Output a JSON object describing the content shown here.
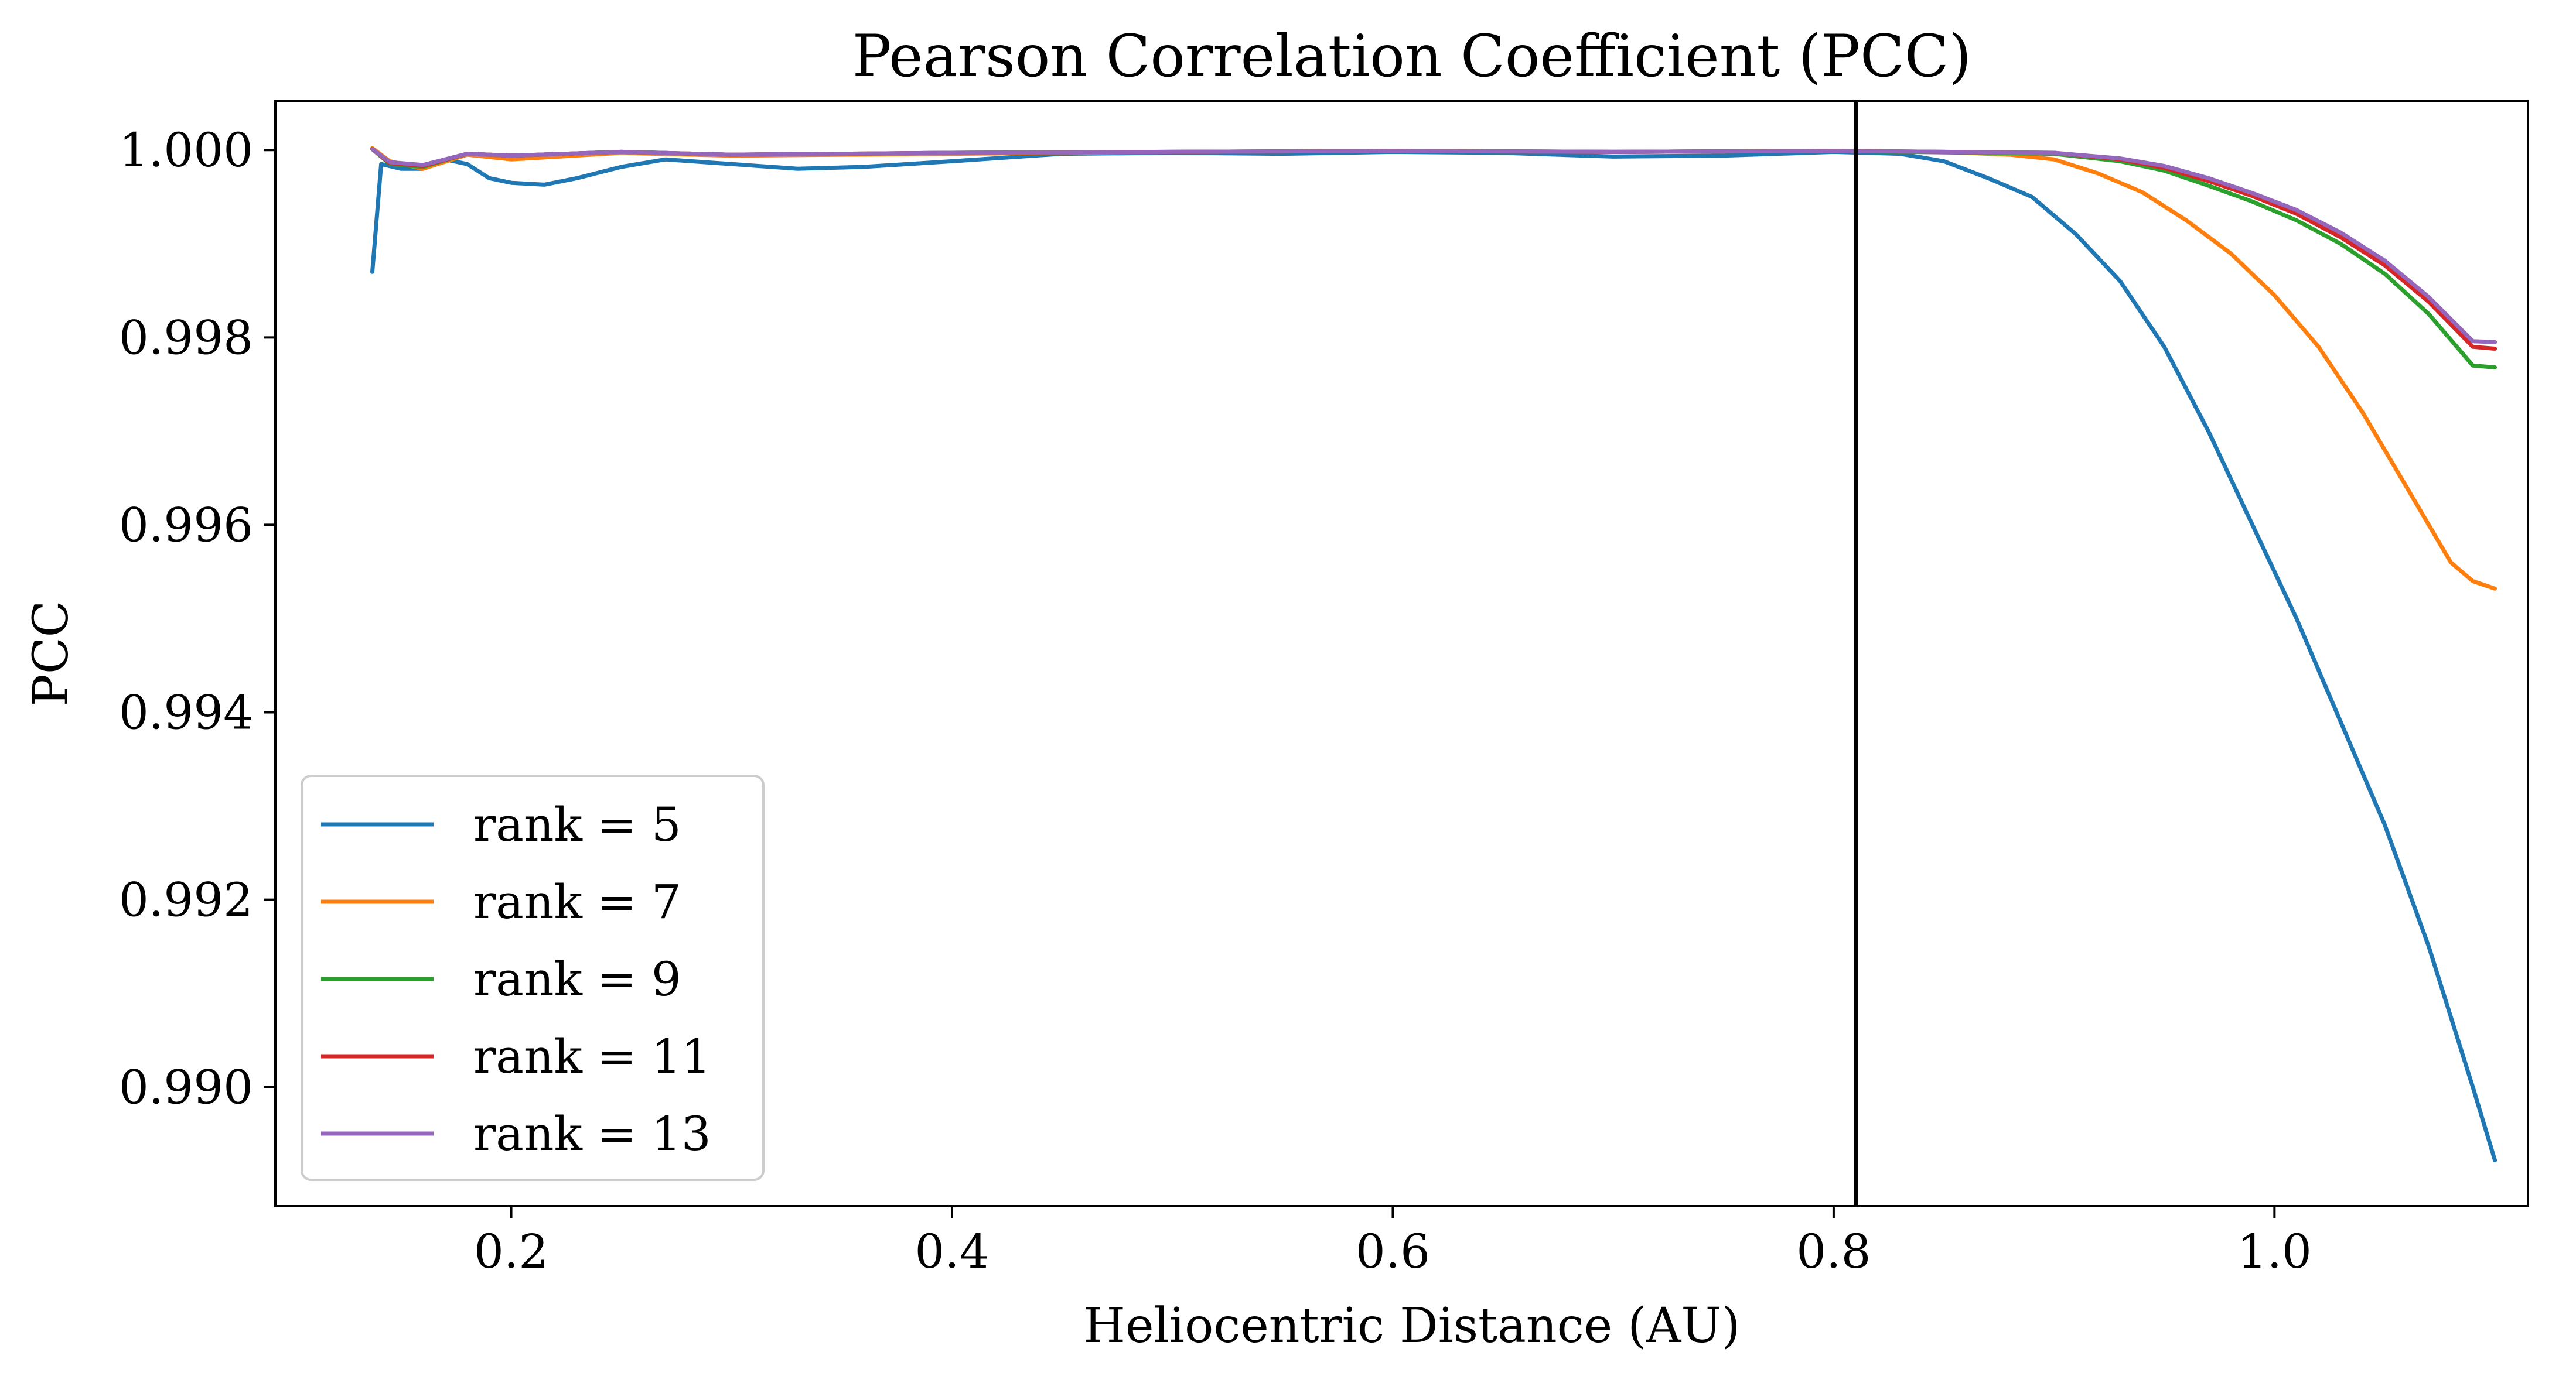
{
  "chart_data": {
    "type": "line",
    "title": "Pearson Correlation Coefficient (PCC)",
    "xlabel": "Heliocentric Distance (AU)",
    "ylabel": "PCC",
    "xlim": [
      0.093,
      1.115
    ],
    "ylim": [
      0.98873,
      1.00052
    ],
    "xticks": [
      0.2,
      0.4,
      0.6,
      0.8,
      1.0
    ],
    "xtick_labels": [
      "0.2",
      "0.4",
      "0.6",
      "0.8",
      "1.0"
    ],
    "yticks": [
      0.99,
      0.992,
      0.994,
      0.996,
      0.998,
      1.0
    ],
    "ytick_labels": [
      "0.990",
      "0.992",
      "0.994",
      "0.996",
      "0.998",
      "1.000"
    ],
    "vline": {
      "x": 0.81,
      "color": "#000000"
    },
    "grid": false,
    "legend_position": "lower-left",
    "series": [
      {
        "name": "rank = 5",
        "color": "#1f77b4",
        "points": [
          [
            0.137,
            0.9987
          ],
          [
            0.141,
            0.99985
          ],
          [
            0.15,
            0.9998
          ],
          [
            0.16,
            0.9998
          ],
          [
            0.17,
            0.9999
          ],
          [
            0.18,
            0.99985
          ],
          [
            0.19,
            0.9997
          ],
          [
            0.2,
            0.99965
          ],
          [
            0.215,
            0.99963
          ],
          [
            0.23,
            0.9997
          ],
          [
            0.25,
            0.99982
          ],
          [
            0.27,
            0.9999
          ],
          [
            0.3,
            0.99985
          ],
          [
            0.33,
            0.9998
          ],
          [
            0.36,
            0.99982
          ],
          [
            0.4,
            0.99988
          ],
          [
            0.45,
            0.99996
          ],
          [
            0.5,
            0.99997
          ],
          [
            0.55,
            0.99996
          ],
          [
            0.6,
            0.99998
          ],
          [
            0.65,
            0.99997
          ],
          [
            0.7,
            0.99993
          ],
          [
            0.75,
            0.99994
          ],
          [
            0.8,
            0.99998
          ],
          [
            0.83,
            0.99996
          ],
          [
            0.85,
            0.99988
          ],
          [
            0.87,
            0.9997
          ],
          [
            0.89,
            0.9995
          ],
          [
            0.91,
            0.9991
          ],
          [
            0.93,
            0.9986
          ],
          [
            0.95,
            0.9979
          ],
          [
            0.97,
            0.997
          ],
          [
            0.99,
            0.996
          ],
          [
            1.01,
            0.995
          ],
          [
            1.03,
            0.9939
          ],
          [
            1.05,
            0.9928
          ],
          [
            1.07,
            0.9915
          ],
          [
            1.09,
            0.99
          ],
          [
            1.1,
            0.98922
          ]
        ]
      },
      {
        "name": "rank = 7",
        "color": "#ff7f0e",
        "points": [
          [
            0.137,
            1.00002
          ],
          [
            0.145,
            0.99988
          ],
          [
            0.16,
            0.9998
          ],
          [
            0.18,
            0.99995
          ],
          [
            0.2,
            0.9999
          ],
          [
            0.25,
            0.99997
          ],
          [
            0.3,
            0.99994
          ],
          [
            0.4,
            0.99996
          ],
          [
            0.5,
            0.99998
          ],
          [
            0.6,
            0.99999
          ],
          [
            0.7,
            0.99998
          ],
          [
            0.8,
            0.99999
          ],
          [
            0.85,
            0.99998
          ],
          [
            0.88,
            0.99995
          ],
          [
            0.9,
            0.9999
          ],
          [
            0.92,
            0.99975
          ],
          [
            0.94,
            0.99955
          ],
          [
            0.96,
            0.99925
          ],
          [
            0.98,
            0.9989
          ],
          [
            1.0,
            0.99845
          ],
          [
            1.02,
            0.9979
          ],
          [
            1.04,
            0.9972
          ],
          [
            1.06,
            0.9964
          ],
          [
            1.08,
            0.9956
          ],
          [
            1.09,
            0.9954
          ],
          [
            1.1,
            0.99532
          ]
        ]
      },
      {
        "name": "rank = 9",
        "color": "#2ca02c",
        "points": [
          [
            0.137,
            1.00001
          ],
          [
            0.145,
            0.99985
          ],
          [
            0.16,
            0.99982
          ],
          [
            0.18,
            0.99996
          ],
          [
            0.2,
            0.99994
          ],
          [
            0.25,
            0.99998
          ],
          [
            0.3,
            0.99995
          ],
          [
            0.4,
            0.99997
          ],
          [
            0.5,
            0.99998
          ],
          [
            0.6,
            0.99999
          ],
          [
            0.7,
            0.99998
          ],
          [
            0.8,
            0.99999
          ],
          [
            0.9,
            0.99996
          ],
          [
            0.93,
            0.99988
          ],
          [
            0.95,
            0.99978
          ],
          [
            0.97,
            0.99962
          ],
          [
            0.99,
            0.99945
          ],
          [
            1.01,
            0.99925
          ],
          [
            1.03,
            0.999
          ],
          [
            1.05,
            0.99868
          ],
          [
            1.07,
            0.99825
          ],
          [
            1.09,
            0.9977
          ],
          [
            1.1,
            0.99768
          ]
        ]
      },
      {
        "name": "rank = 11",
        "color": "#d62728",
        "points": [
          [
            0.137,
            1.00001
          ],
          [
            0.145,
            0.99986
          ],
          [
            0.16,
            0.99983
          ],
          [
            0.18,
            0.99996
          ],
          [
            0.2,
            0.99994
          ],
          [
            0.25,
            0.99998
          ],
          [
            0.3,
            0.99995
          ],
          [
            0.4,
            0.99997
          ],
          [
            0.5,
            0.99998
          ],
          [
            0.6,
            0.99999
          ],
          [
            0.7,
            0.99998
          ],
          [
            0.8,
            0.99999
          ],
          [
            0.9,
            0.99997
          ],
          [
            0.93,
            0.9999
          ],
          [
            0.95,
            0.99981
          ],
          [
            0.97,
            0.99967
          ],
          [
            0.99,
            0.99951
          ],
          [
            1.01,
            0.99932
          ],
          [
            1.03,
            0.99907
          ],
          [
            1.05,
            0.99877
          ],
          [
            1.07,
            0.99838
          ],
          [
            1.09,
            0.9979
          ],
          [
            1.1,
            0.99788
          ]
        ]
      },
      {
        "name": "rank = 13",
        "color": "#9467bd",
        "points": [
          [
            0.137,
            1.00001
          ],
          [
            0.145,
            0.99987
          ],
          [
            0.16,
            0.99984
          ],
          [
            0.18,
            0.99996
          ],
          [
            0.2,
            0.99994
          ],
          [
            0.25,
            0.99998
          ],
          [
            0.3,
            0.99995
          ],
          [
            0.4,
            0.99997
          ],
          [
            0.5,
            0.99998
          ],
          [
            0.6,
            0.99999
          ],
          [
            0.7,
            0.99998
          ],
          [
            0.8,
            0.99999
          ],
          [
            0.9,
            0.99997
          ],
          [
            0.93,
            0.99991
          ],
          [
            0.95,
            0.99983
          ],
          [
            0.97,
            0.9997
          ],
          [
            0.99,
            0.99954
          ],
          [
            1.01,
            0.99936
          ],
          [
            1.03,
            0.99912
          ],
          [
            1.05,
            0.99882
          ],
          [
            1.07,
            0.99843
          ],
          [
            1.09,
            0.99796
          ],
          [
            1.1,
            0.99795
          ]
        ]
      }
    ]
  }
}
